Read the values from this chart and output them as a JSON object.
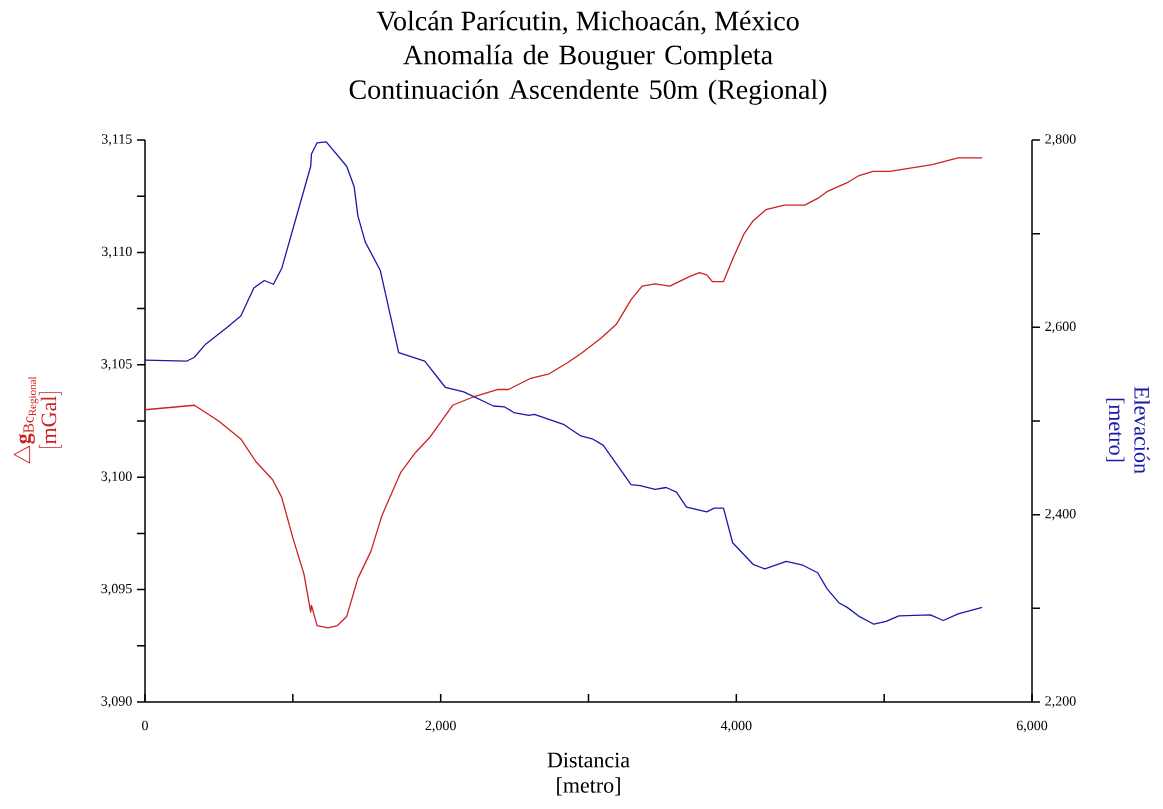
{
  "chart_data": {
    "type": "line",
    "title": "Volcán Parícutin, Michoacán, México",
    "subtitle": "Anomalía de Bouguer Completa Continuación Ascendente 50m (Regional)",
    "xlabel": "Distancia [metro]",
    "ylabel": "\\begin{array}{c}\\triangle\\mathbf{g}_{\\mathrm{Bc}_{\\mathrm{Regional}}}\\\\ \\mathrm{[mGal]}\\end{array}",
    "y2label": "Elevación [metro]",
    "xlim": [
      0,
      6000
    ],
    "xticks": [
      {
        "value": 0,
        "label": "0"
      },
      {
        "value": 1000,
        "label": null
      },
      {
        "value": 2000,
        "label": "2,000"
      },
      {
        "value": 3000,
        "label": null
      },
      {
        "value": 4000,
        "label": "4,000"
      },
      {
        "value": 5000,
        "label": null
      },
      {
        "value": 6000,
        "label": "6,000"
      }
    ],
    "ylim": [
      3090,
      3115
    ],
    "yticks": [
      {
        "value": 3090,
        "label": "3,090"
      },
      {
        "value": 3092.5,
        "label": null
      },
      {
        "value": 3095,
        "label": "3,095"
      },
      {
        "value": 3097.5,
        "label": null
      },
      {
        "value": 3100,
        "label": "3,100"
      },
      {
        "value": 3102.5,
        "label": null
      },
      {
        "value": 3105,
        "label": "3,105"
      },
      {
        "value": 3107.5,
        "label": null
      },
      {
        "value": 3110,
        "label": "3,110"
      },
      {
        "value": 3112.5,
        "label": null
      },
      {
        "value": 3115,
        "label": "3,115"
      }
    ],
    "y2lim": [
      2200,
      2800
    ],
    "y2ticks": [
      {
        "value": 2200,
        "label": "2,200"
      },
      {
        "value": 2300,
        "label": null
      },
      {
        "value": 2400,
        "label": "2,400"
      },
      {
        "value": 2500,
        "label": null
      },
      {
        "value": 2600,
        "label": "2,600"
      },
      {
        "value": 2700,
        "label": null
      },
      {
        "value": 2800,
        "label": "2,800"
      }
    ],
    "series": [
      {
        "color": "#cc2222",
        "x": [
          0,
          334,
          498,
          648,
          749,
          862,
          925,
          1000,
          1075,
          1121,
          1126,
          1164,
          1239,
          1302,
          1364,
          1440,
          1528,
          1603,
          1729,
          1830,
          1930,
          2081,
          2232,
          2383,
          2458,
          2609,
          2734,
          2860,
          2950,
          3088,
          3188,
          3288,
          3363,
          3450,
          3550,
          3675,
          3750,
          3800,
          3838,
          3913,
          3975,
          4050,
          4113,
          4200,
          4325,
          4463,
          4550,
          4613,
          4750,
          4825,
          4925,
          5038,
          5325,
          5500,
          5663
        ],
        "values": [
          3103.0,
          3103.2,
          3102.5,
          3101.7,
          3100.7,
          3099.9,
          3099.1,
          3097.3,
          3095.7,
          3094.0,
          3094.3,
          3093.4,
          3093.3,
          3093.4,
          3093.8,
          3095.5,
          3096.7,
          3098.3,
          3100.2,
          3101.1,
          3101.8,
          3103.2,
          3103.6,
          3103.9,
          3103.9,
          3104.4,
          3104.6,
          3105.1,
          3105.5,
          3106.2,
          3106.8,
          3107.9,
          3108.5,
          3108.6,
          3108.5,
          3108.9,
          3109.1,
          3109.0,
          3108.7,
          3108.7,
          3109.7,
          3110.8,
          3111.4,
          3111.9,
          3112.1,
          3112.1,
          3112.4,
          3112.7,
          3113.1,
          3113.4,
          3113.6,
          3113.6,
          3113.9,
          3114.2,
          3114.2
        ]
      },
      {
        "color": "#1a1aa8",
        "axis": "y2",
        "x": [
          0,
          284,
          334,
          410,
          548,
          648,
          736,
          807,
          869,
          925,
          1121,
          1126,
          1164,
          1226,
          1364,
          1415,
          1440,
          1490,
          1591,
          1716,
          1892,
          2031,
          2156,
          2357,
          2433,
          2495,
          2596,
          2634,
          2835,
          2948,
          3025,
          3100,
          3288,
          3350,
          3450,
          3525,
          3595,
          3663,
          3800,
          3850,
          3913,
          3975,
          4113,
          4193,
          4338,
          4450,
          4550,
          4613,
          4693,
          4750,
          4825,
          4930,
          5013,
          5100,
          5313,
          5400,
          5500,
          5663
        ],
        "values": [
          2565,
          2564,
          2568,
          2582,
          2599,
          2612,
          2642,
          2650,
          2646,
          2663,
          2772,
          2785,
          2797,
          2798,
          2772,
          2750,
          2719,
          2691,
          2661,
          2573,
          2564,
          2536,
          2531,
          2516,
          2515,
          2509,
          2506,
          2507,
          2496,
          2484,
          2481,
          2474,
          2432,
          2431,
          2427,
          2429,
          2424,
          2408,
          2403,
          2407,
          2407,
          2370,
          2347,
          2342,
          2350,
          2346,
          2338,
          2321,
          2306,
          2301,
          2292,
          2283,
          2286,
          2292,
          2293,
          2287,
          2294,
          2301
        ]
      }
    ]
  }
}
